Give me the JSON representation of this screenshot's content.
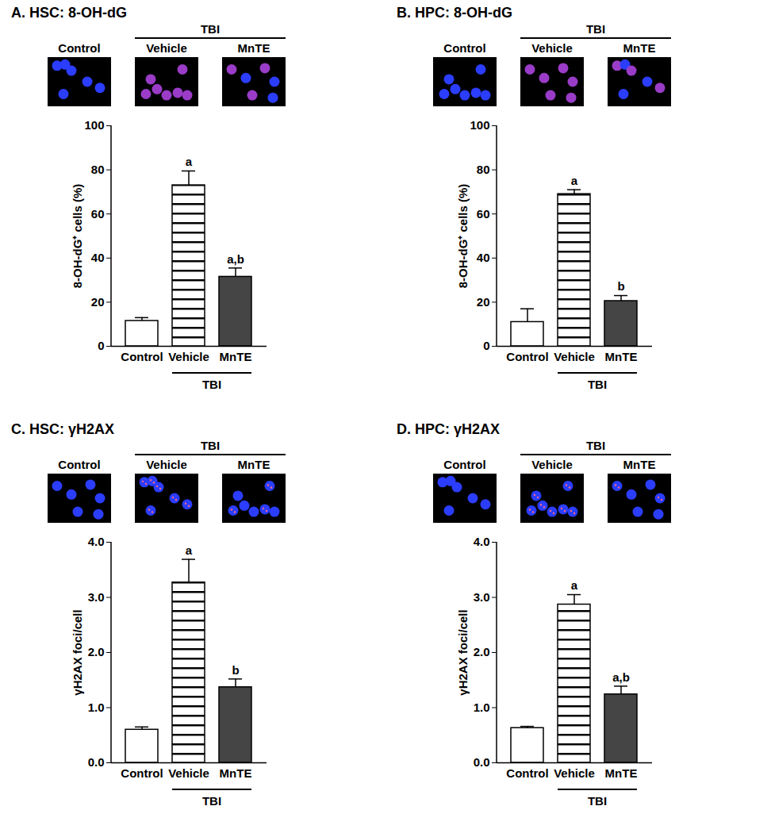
{
  "chart_data": [
    {
      "type": "bar",
      "title": "A. HSC: 8-OH-dG",
      "y_label": "8-OH-dG⁺ cells (%)",
      "categories": [
        "Control",
        "Vehicle",
        "MnTE"
      ],
      "values": [
        11.5,
        73,
        31.5
      ],
      "errors": [
        1.5,
        6.5,
        4
      ],
      "annotations": [
        null,
        "a",
        "a,b"
      ],
      "colors": [
        "#ffffff",
        "#ffffff",
        "#454545"
      ],
      "group_label": "TBI",
      "image_labels": [
        "Control",
        "Vehicle",
        "MnTE"
      ],
      "ylim": [
        0,
        100
      ],
      "yticks": [
        0,
        20,
        40,
        60,
        80,
        100
      ],
      "grid": false
    },
    {
      "type": "bar",
      "title": "B. HPC: 8-OH-dG",
      "y_label": "8-OH-dG⁺ cells (%)",
      "categories": [
        "Control",
        "Vehicle",
        "MnTE"
      ],
      "values": [
        11,
        69,
        20.5
      ],
      "errors": [
        6,
        2,
        2.5
      ],
      "annotations": [
        null,
        "a",
        "b"
      ],
      "colors": [
        "#ffffff",
        "#ffffff",
        "#454545"
      ],
      "group_label": "TBI",
      "image_labels": [
        "Control",
        "Vehicle",
        "MnTE"
      ],
      "ylim": [
        0,
        100
      ],
      "yticks": [
        0,
        20,
        40,
        60,
        80,
        100
      ],
      "grid": false
    },
    {
      "type": "bar",
      "title": "C. HSC: γH2AX",
      "y_label": "γH2AX foci/cell",
      "categories": [
        "Control",
        "Vehicle",
        "MnTE"
      ],
      "values": [
        0.6,
        3.27,
        1.37
      ],
      "errors": [
        0.05,
        0.42,
        0.15
      ],
      "annotations": [
        null,
        "a",
        "b"
      ],
      "colors": [
        "#ffffff",
        "#ffffff",
        "#454545"
      ],
      "group_label": "TBI",
      "image_labels": [
        "Control",
        "Vehicle",
        "MnTE"
      ],
      "ylim": [
        0,
        4
      ],
      "yticks": [
        0,
        1,
        2,
        3,
        4
      ],
      "grid": false
    },
    {
      "type": "bar",
      "title": "D. HPC: γH2AX",
      "y_label": "γH2AX foci/cell",
      "categories": [
        "Control",
        "Vehicle",
        "MnTE"
      ],
      "values": [
        0.63,
        2.87,
        1.24
      ],
      "errors": [
        0.03,
        0.18,
        0.15
      ],
      "annotations": [
        null,
        "a",
        "a,b"
      ],
      "colors": [
        "#ffffff",
        "#ffffff",
        "#454545"
      ],
      "group_label": "TBI",
      "image_labels": [
        "Control",
        "Vehicle",
        "MnTE"
      ],
      "ylim": [
        0,
        4
      ],
      "yticks": [
        0,
        1,
        2,
        3,
        4
      ],
      "grid": false
    }
  ]
}
